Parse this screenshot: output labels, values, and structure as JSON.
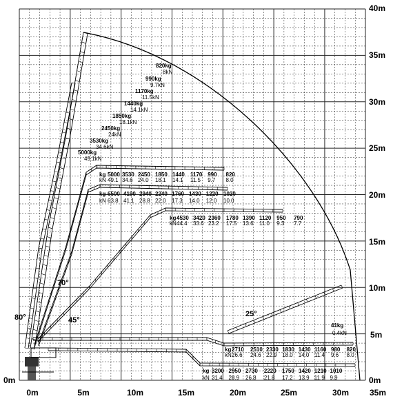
{
  "axes": {
    "x_ticks": [
      "0m",
      "5m",
      "10m",
      "15m",
      "20m",
      "25m",
      "30m",
      "35m"
    ],
    "y_ticks": [
      "0m",
      "5m",
      "10m",
      "15m",
      "20m",
      "25m",
      "30m",
      "35m",
      "40m"
    ]
  },
  "angles": {
    "a80": "80°",
    "a70": "70°",
    "a45": "45°",
    "a25": "25°"
  },
  "tip_loads": [
    {
      "kg": "820kg",
      "kn": "8kN"
    },
    {
      "kg": "990kg",
      "kn": "9.7kN"
    },
    {
      "kg": "1170kg",
      "kn": "11.5kN"
    },
    {
      "kg": "1440kg",
      "kn": "14.1kN"
    },
    {
      "kg": "1850kg",
      "kn": "18.1kN"
    },
    {
      "kg": "2450kg",
      "kn": "24kN"
    },
    {
      "kg": "3530kg",
      "kn": "34.6kN"
    },
    {
      "kg": "5000kg",
      "kn": "49.1kN"
    }
  ],
  "tables": {
    "t70a": {
      "units": [
        "kg",
        "kN"
      ],
      "kg": [
        "5000",
        "3530",
        "2450",
        "1850",
        "1440",
        "1170",
        "990",
        "820"
      ],
      "kn": [
        "49.1",
        "34.6",
        "24.0",
        "18.1",
        "14.1",
        "11.5",
        "9.7",
        "8.0"
      ]
    },
    "t70b": {
      "units": [
        "kg",
        "kN"
      ],
      "kg": [
        "6500",
        "4190",
        "2940",
        "2240",
        "1760",
        "1430",
        "1220",
        "1020"
      ],
      "kn": [
        "63.8",
        "41.1",
        "28.8",
        "22.0",
        "17.3",
        "14.0",
        "12.0",
        "10.0"
      ]
    },
    "t45": {
      "units": [
        "kg",
        "kN"
      ],
      "kg": [
        "4530",
        "3420",
        "2360",
        "1780",
        "1390",
        "1120",
        "950",
        "790"
      ],
      "kn": [
        "44.4",
        "33.6",
        "23.2",
        "17.5",
        "13.6",
        "11.0",
        "9.3",
        "7.7"
      ]
    },
    "t25": {
      "kg": "41kg",
      "kn": "0.4kN"
    },
    "t0a": {
      "units": [
        "kg",
        "kN"
      ],
      "kg": [
        "2710",
        "2510",
        "2330",
        "1830",
        "1430",
        "1160",
        "980",
        "820"
      ],
      "kn": [
        "26.6",
        "24.6",
        "22.9",
        "18.0",
        "14.0",
        "11.4",
        "9.6",
        "8.0"
      ]
    },
    "t0b": {
      "units": [
        "kg",
        "kN"
      ],
      "kg": [
        "3200",
        "2950",
        "2730",
        "2220",
        "1750",
        "1420",
        "1210",
        "1010"
      ],
      "kn": [
        "31.4",
        "28.9",
        "26.8",
        "21.8",
        "17.2",
        "13.9",
        "11.9",
        "9.9"
      ]
    }
  }
}
